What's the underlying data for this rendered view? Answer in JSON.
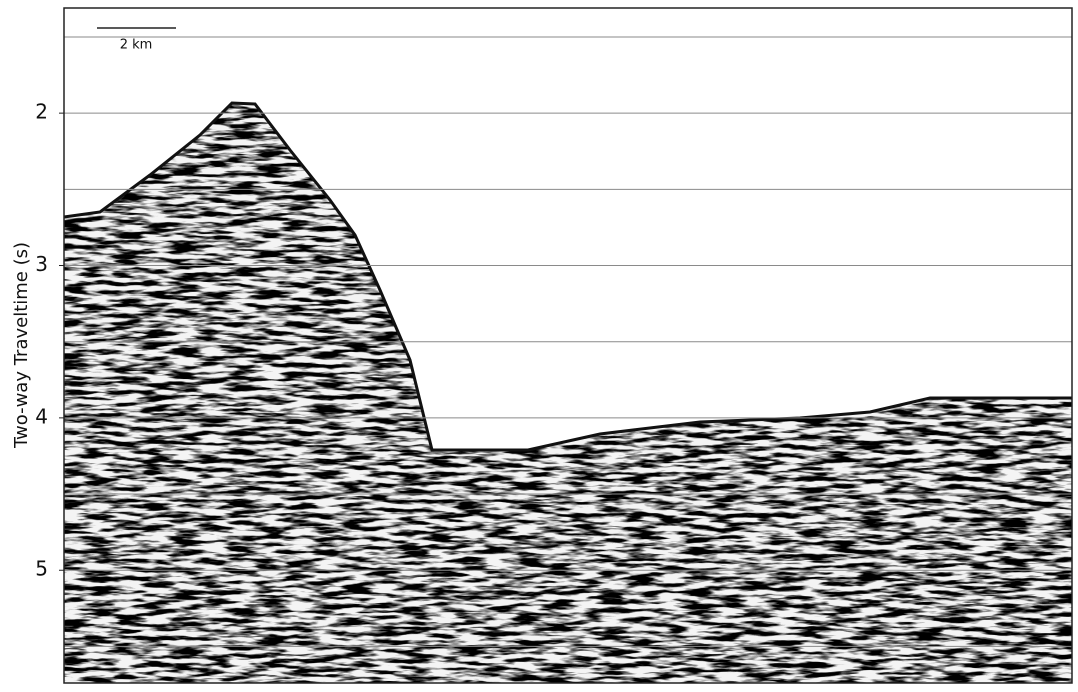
{
  "chart_data": {
    "type": "seismic-section",
    "y_label": "Two-way Traveltime (s)",
    "scale_bar": "2 km",
    "ylim": [
      5.74,
      1.31
    ],
    "yticks": [
      2,
      3,
      4,
      5
    ],
    "gridlines": [
      1.5,
      2,
      2.5,
      3,
      3.5,
      4,
      4.5,
      5,
      5.5
    ]
  }
}
